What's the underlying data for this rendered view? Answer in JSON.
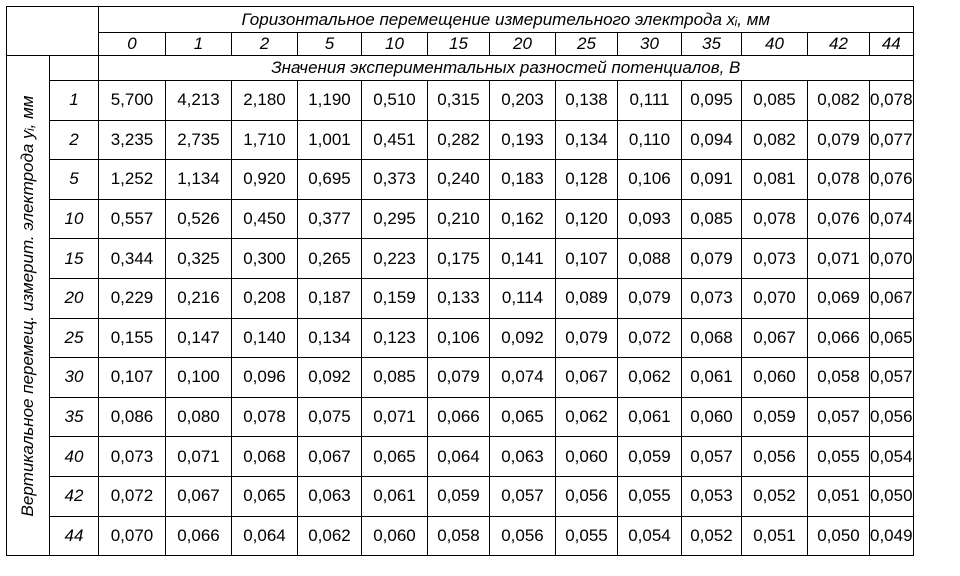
{
  "header": {
    "title": "Горизонтальное перемещение измерительного электрода xᵢ, мм",
    "subtitle": "Значения экспериментальных  разностей  потенциалов, В",
    "row_axis_label": "Вертикальное перемещ. измерит. электрода yᵢ, мм"
  },
  "x_values": [
    "0",
    "1",
    "2",
    "5",
    "10",
    "15",
    "20",
    "25",
    "30",
    "35",
    "40",
    "42",
    "44"
  ],
  "rows": [
    {
      "y": "1",
      "values": [
        "5,700",
        "4,213",
        "2,180",
        "1,190",
        "0,510",
        "0,315",
        "0,203",
        "0,138",
        "0,111",
        "0,095",
        "0,085",
        "0,082",
        "0,078"
      ]
    },
    {
      "y": "2",
      "values": [
        "3,235",
        "2,735",
        "1,710",
        "1,001",
        "0,451",
        "0,282",
        "0,193",
        "0,134",
        "0,110",
        "0,094",
        "0,082",
        "0,079",
        "0,077"
      ]
    },
    {
      "y": "5",
      "values": [
        "1,252",
        "1,134",
        "0,920",
        "0,695",
        "0,373",
        "0,240",
        "0,183",
        "0,128",
        "0,106",
        "0,091",
        "0,081",
        "0,078",
        "0,076"
      ]
    },
    {
      "y": "10",
      "values": [
        "0,557",
        "0,526",
        "0,450",
        "0,377",
        "0,295",
        "0,210",
        "0,162",
        "0,120",
        "0,093",
        "0,085",
        "0,078",
        "0,076",
        "0,074"
      ]
    },
    {
      "y": "15",
      "values": [
        "0,344",
        "0,325",
        "0,300",
        "0,265",
        "0,223",
        "0,175",
        "0,141",
        "0,107",
        "0,088",
        "0,079",
        "0,073",
        "0,071",
        "0,070"
      ]
    },
    {
      "y": "20",
      "values": [
        "0,229",
        "0,216",
        "0,208",
        "0,187",
        "0,159",
        "0,133",
        "0,114",
        "0,089",
        "0,079",
        "0,073",
        "0,070",
        "0,069",
        "0,067"
      ]
    },
    {
      "y": "25",
      "values": [
        "0,155",
        "0,147",
        "0,140",
        "0,134",
        "0,123",
        "0,106",
        "0,092",
        "0,079",
        "0,072",
        "0,068",
        "0,067",
        "0,066",
        "0,065"
      ]
    },
    {
      "y": "30",
      "values": [
        "0,107",
        "0,100",
        "0,096",
        "0,092",
        "0,085",
        "0,079",
        "0,074",
        "0,067",
        "0,062",
        "0,061",
        "0,060",
        "0,058",
        "0,057"
      ]
    },
    {
      "y": "35",
      "values": [
        "0,086",
        "0,080",
        "0,078",
        "0,075",
        "0,071",
        "0,066",
        "0,065",
        "0,062",
        "0,061",
        "0,060",
        "0,059",
        "0,057",
        "0,056"
      ]
    },
    {
      "y": "40",
      "values": [
        "0,073",
        "0,071",
        "0,068",
        "0,067",
        "0,065",
        "0,064",
        "0,063",
        "0,060",
        "0,059",
        "0,057",
        "0,056",
        "0,055",
        "0,054"
      ]
    },
    {
      "y": "42",
      "values": [
        "0,072",
        "0,067",
        "0,065",
        "0,063",
        "0,061",
        "0,059",
        "0,057",
        "0,056",
        "0,055",
        "0,053",
        "0,052",
        "0,051",
        "0,050"
      ]
    },
    {
      "y": "44",
      "values": [
        "0,070",
        "0,066",
        "0,064",
        "0,062",
        "0,060",
        "0,058",
        "0,056",
        "0,055",
        "0,054",
        "0,052",
        "0,051",
        "0,050",
        "0,049"
      ]
    }
  ]
}
